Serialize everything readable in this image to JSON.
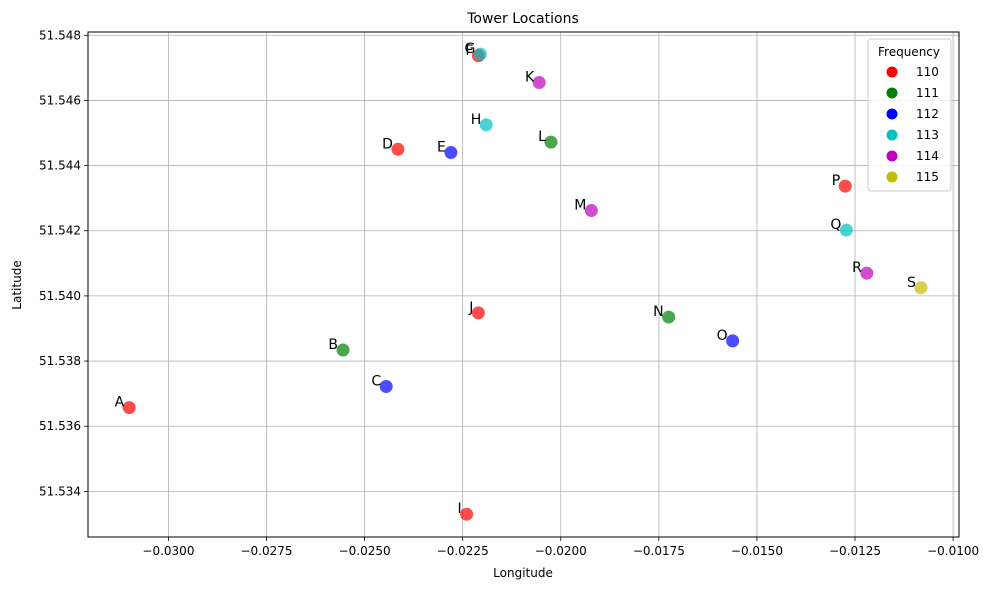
{
  "chart_data": {
    "type": "scatter",
    "title": "Tower Locations",
    "xlabel": "Longitude",
    "ylabel": "Latitude",
    "xlim": [
      -0.03205,
      -0.00985
    ],
    "ylim": [
      51.5326,
      51.5481
    ],
    "xticks": [
      -0.03,
      -0.0275,
      -0.025,
      -0.0225,
      -0.02,
      -0.0175,
      -0.015,
      -0.0125,
      -0.01
    ],
    "xtick_labels": [
      "−0.0300",
      "−0.0275",
      "−0.0250",
      "−0.0225",
      "−0.0200",
      "−0.0175",
      "−0.0150",
      "−0.0125",
      "−0.0100"
    ],
    "yticks": [
      51.534,
      51.536,
      51.538,
      51.54,
      51.542,
      51.544,
      51.546,
      51.548
    ],
    "ytick_labels": [
      "51.534",
      "51.536",
      "51.538",
      "51.540",
      "51.542",
      "51.544",
      "51.546",
      "51.548"
    ],
    "grid": true,
    "legend": {
      "title": "Frequency",
      "placement": "top-right"
    },
    "series": [
      {
        "name": "110",
        "color": "#ff0000"
      },
      {
        "name": "111",
        "color": "#008000"
      },
      {
        "name": "112",
        "color": "#0000ff"
      },
      {
        "name": "113",
        "color": "#00bfbf"
      },
      {
        "name": "114",
        "color": "#bf00bf"
      },
      {
        "name": "115",
        "color": "#bfbf00"
      }
    ],
    "points": [
      {
        "label": "A",
        "x": -0.031,
        "y": 51.53657,
        "freq": "110"
      },
      {
        "label": "B",
        "x": -0.02555,
        "y": 51.53834,
        "freq": "111"
      },
      {
        "label": "C",
        "x": -0.02445,
        "y": 51.53722,
        "freq": "112"
      },
      {
        "label": "D",
        "x": -0.02415,
        "y": 51.5445,
        "freq": "110"
      },
      {
        "label": "E",
        "x": -0.0228,
        "y": 51.5444,
        "freq": "112"
      },
      {
        "label": "F",
        "x": -0.0221,
        "y": 51.54737,
        "freq": "110"
      },
      {
        "label": "G",
        "x": -0.02205,
        "y": 51.54742,
        "freq": "113"
      },
      {
        "label": "H",
        "x": -0.0219,
        "y": 51.54525,
        "freq": "113"
      },
      {
        "label": "I",
        "x": -0.0224,
        "y": 51.5333,
        "freq": "110"
      },
      {
        "label": "J",
        "x": -0.0221,
        "y": 51.53948,
        "freq": "110"
      },
      {
        "label": "K",
        "x": -0.02055,
        "y": 51.54655,
        "freq": "114"
      },
      {
        "label": "L",
        "x": -0.02025,
        "y": 51.54472,
        "freq": "111"
      },
      {
        "label": "M",
        "x": -0.01922,
        "y": 51.54262,
        "freq": "114"
      },
      {
        "label": "N",
        "x": -0.01725,
        "y": 51.53935,
        "freq": "111"
      },
      {
        "label": "O",
        "x": -0.01562,
        "y": 51.53862,
        "freq": "112"
      },
      {
        "label": "P",
        "x": -0.01275,
        "y": 51.54337,
        "freq": "110"
      },
      {
        "label": "Q",
        "x": -0.01272,
        "y": 51.54202,
        "freq": "113"
      },
      {
        "label": "R",
        "x": -0.0122,
        "y": 51.5407,
        "freq": "114"
      },
      {
        "label": "S",
        "x": -0.01082,
        "y": 51.54025,
        "freq": "115"
      }
    ]
  }
}
